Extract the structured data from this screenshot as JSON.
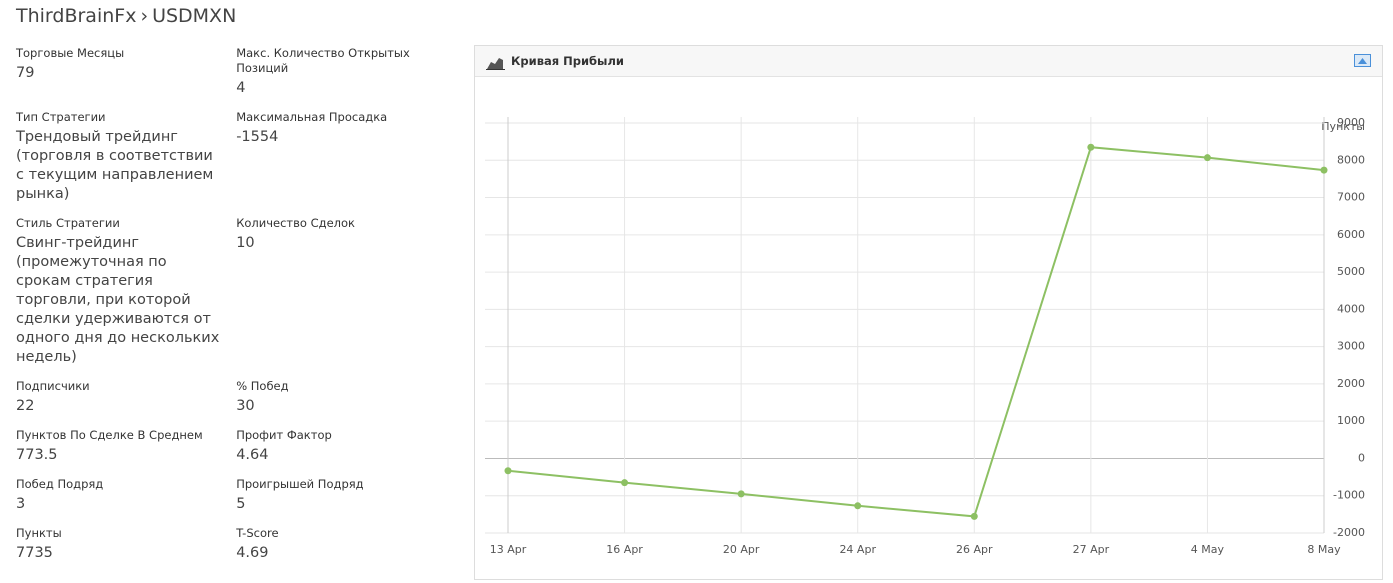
{
  "header": {
    "breadcrumb": [
      "ThirdBrainFx",
      "›",
      "USDMXN"
    ]
  },
  "stats": [
    [
      {
        "label": "Торговые Месяцы",
        "value": "79"
      },
      {
        "label": "Макс. Количество Открытых Позиций",
        "value": "4"
      }
    ],
    [
      {
        "label": "Тип Стратегии",
        "value": "Трендовый трейдинг (торговля в соответствии с текущим направлением рынка)"
      },
      {
        "label": "Максимальная Просадка",
        "value": "-1554"
      }
    ],
    [
      {
        "label": "Стиль Стратегии",
        "value": "Свинг-трейдинг (промежуточная по срокам стратегия торговли, при которой сделки удерживаются от одного дня до нескольких недель)"
      },
      {
        "label": "Количество Сделок",
        "value": "10"
      }
    ],
    [
      {
        "label": "Подписчики",
        "value": "22"
      },
      {
        "label": "% Побед",
        "value": "30"
      }
    ],
    [
      {
        "label": "Пунктов По Сделке В Среднем",
        "value": "773.5"
      },
      {
        "label": "Профит Фактор",
        "value": "4.64"
      }
    ],
    [
      {
        "label": "Побед Подряд",
        "value": "3"
      },
      {
        "label": "Проигрышей Подряд",
        "value": "5"
      }
    ],
    [
      {
        "label": "Пункты",
        "value": "7735"
      },
      {
        "label": "T-Score",
        "value": "4.69"
      }
    ]
  ],
  "chart_data": {
    "type": "line",
    "title": "Кривая Прибыли",
    "y_label": "Пункты",
    "categories": [
      "13 Apr",
      "16 Apr",
      "20 Apr",
      "24 Apr",
      "26 Apr",
      "27 Apr",
      "4 May",
      "8 May"
    ],
    "series": [
      {
        "color": "#8dc063",
        "values": [
          -330,
          -650,
          -950,
          -1270,
          -1554,
          8350,
          8070,
          7735
        ]
      }
    ],
    "ylim": [
      -2000,
      9000
    ],
    "yticks": [
      -2000,
      -1000,
      0,
      1000,
      2000,
      3000,
      4000,
      5000,
      6000,
      7000,
      8000,
      9000
    ],
    "grid": true
  }
}
